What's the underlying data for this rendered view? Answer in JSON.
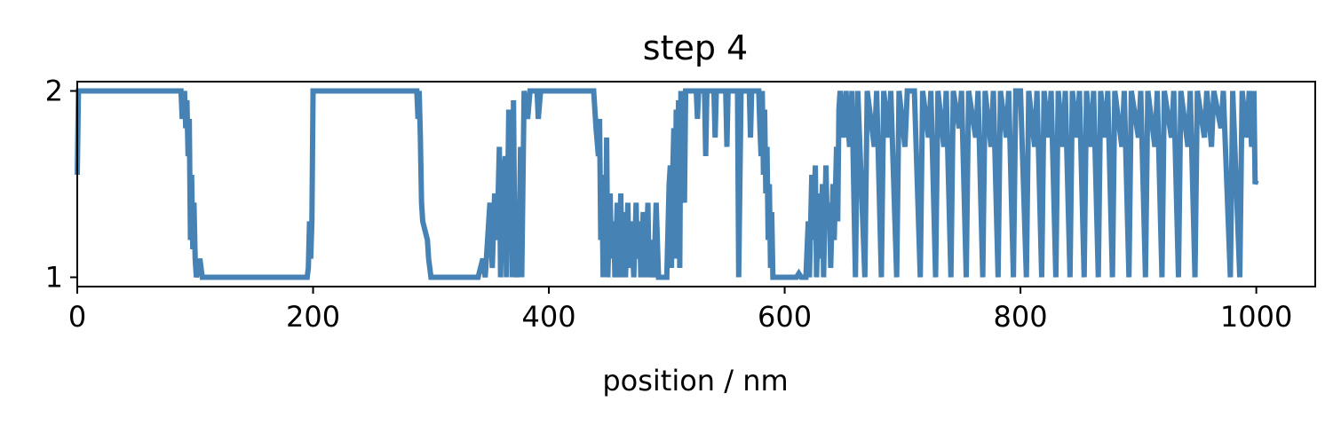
{
  "chart_data": {
    "type": "line",
    "title": "step 4",
    "xlabel": "position / nm",
    "ylabel": "",
    "xlim": [
      0,
      1050
    ],
    "ylim": [
      0.95,
      2.05
    ],
    "x_ticks": [
      0,
      200,
      400,
      600,
      800,
      1000
    ],
    "y_ticks": [
      1,
      2
    ],
    "grid": false,
    "legend": "none",
    "line_color": "#4682b4",
    "series": [
      {
        "color": "#4682b4",
        "points": [
          [
            0,
            1.55
          ],
          [
            1,
            2.0
          ],
          [
            88,
            2.0
          ],
          [
            89,
            1.85
          ],
          [
            91,
            2.0
          ],
          [
            92,
            1.8
          ],
          [
            93,
            1.95
          ],
          [
            94,
            1.65
          ],
          [
            95,
            1.85
          ],
          [
            96,
            1.2
          ],
          [
            97,
            1.55
          ],
          [
            98,
            1.15
          ],
          [
            99,
            1.4
          ],
          [
            100,
            1.1
          ],
          [
            101,
            1.0
          ],
          [
            104,
            1.1
          ],
          [
            106,
            1.0
          ],
          [
            110,
            1.0
          ],
          [
            195,
            1.0
          ],
          [
            196,
            1.05
          ],
          [
            197,
            1.3
          ],
          [
            198,
            1.1
          ],
          [
            199,
            1.3
          ],
          [
            200,
            2.0
          ],
          [
            288,
            2.0
          ],
          [
            289,
            1.85
          ],
          [
            290,
            2.0
          ],
          [
            291,
            1.75
          ],
          [
            292,
            1.4
          ],
          [
            293,
            1.3
          ],
          [
            295,
            1.25
          ],
          [
            297,
            1.2
          ],
          [
            298,
            1.1
          ],
          [
            299,
            1.05
          ],
          [
            300,
            1.0
          ],
          [
            304,
            1.0
          ],
          [
            340,
            1.0
          ],
          [
            342,
            1.05
          ],
          [
            344,
            1.1
          ],
          [
            346,
            1.0
          ],
          [
            348,
            1.2
          ],
          [
            350,
            1.4
          ],
          [
            352,
            1.05
          ],
          [
            354,
            1.45
          ],
          [
            356,
            1.2
          ],
          [
            358,
            1.7
          ],
          [
            359,
            1.0
          ],
          [
            361,
            1.5
          ],
          [
            363,
            1.65
          ],
          [
            364,
            1.0
          ],
          [
            366,
            1.9
          ],
          [
            367,
            1.3
          ],
          [
            368,
            1.8
          ],
          [
            369,
            1.0
          ],
          [
            370,
            1.95
          ],
          [
            371,
            1.2
          ],
          [
            373,
            1.0
          ],
          [
            375,
            1.3
          ],
          [
            376,
            1.7
          ],
          [
            377,
            1.0
          ],
          [
            379,
            2.0
          ],
          [
            382,
            1.85
          ],
          [
            384,
            2.0
          ],
          [
            390,
            2.0
          ],
          [
            391,
            1.85
          ],
          [
            393,
            2.0
          ],
          [
            438,
            2.0
          ],
          [
            439,
            1.9
          ],
          [
            440,
            1.8
          ],
          [
            442,
            1.65
          ],
          [
            443,
            1.85
          ],
          [
            444,
            1.2
          ],
          [
            445,
            1.55
          ],
          [
            446,
            1.0
          ],
          [
            447,
            1.5
          ],
          [
            448,
            1.1
          ],
          [
            449,
            1.75
          ],
          [
            450,
            1.0
          ],
          [
            452,
            1.45
          ],
          [
            453,
            1.1
          ],
          [
            455,
            1.3
          ],
          [
            456,
            1.0
          ],
          [
            458,
            1.4
          ],
          [
            459,
            1.0
          ],
          [
            461,
            1.45
          ],
          [
            462,
            1.0
          ],
          [
            464,
            1.35
          ],
          [
            465,
            1.0
          ],
          [
            467,
            1.4
          ],
          [
            468,
            1.05
          ],
          [
            470,
            1.3
          ],
          [
            472,
            1.0
          ],
          [
            474,
            1.4
          ],
          [
            475,
            1.1
          ],
          [
            477,
            1.3
          ],
          [
            478,
            1.0
          ],
          [
            480,
            1.35
          ],
          [
            482,
            1.0
          ],
          [
            484,
            1.4
          ],
          [
            485,
            1.0
          ],
          [
            487,
            1.2
          ],
          [
            489,
            1.0
          ],
          [
            491,
            1.4
          ],
          [
            493,
            1.0
          ],
          [
            495,
            1.0
          ],
          [
            500,
            1.0
          ],
          [
            502,
            1.5
          ],
          [
            503,
            1.6
          ],
          [
            504,
            1.05
          ],
          [
            505,
            1.55
          ],
          [
            506,
            1.8
          ],
          [
            507,
            1.1
          ],
          [
            508,
            1.9
          ],
          [
            509,
            1.6
          ],
          [
            510,
            1.95
          ],
          [
            511,
            1.05
          ],
          [
            512,
            2.0
          ],
          [
            515,
            1.4
          ],
          [
            516,
            2.0
          ],
          [
            525,
            2.0
          ],
          [
            526,
            1.85
          ],
          [
            527,
            2.0
          ],
          [
            532,
            2.0
          ],
          [
            533,
            1.65
          ],
          [
            534,
            2.0
          ],
          [
            540,
            2.0
          ],
          [
            541,
            1.75
          ],
          [
            542,
            2.0
          ],
          [
            550,
            2.0
          ],
          [
            551,
            1.7
          ],
          [
            552,
            2.0
          ],
          [
            560,
            2.0
          ],
          [
            561,
            1.0
          ],
          [
            563,
            2.0
          ],
          [
            570,
            2.0
          ],
          [
            571,
            1.75
          ],
          [
            572,
            2.0
          ],
          [
            578,
            2.0
          ],
          [
            579,
            1.8
          ],
          [
            580,
            1.65
          ],
          [
            581,
            2.0
          ],
          [
            582,
            1.55
          ],
          [
            583,
            1.9
          ],
          [
            584,
            1.45
          ],
          [
            585,
            1.7
          ],
          [
            586,
            1.2
          ],
          [
            587,
            1.5
          ],
          [
            588,
            1.05
          ],
          [
            589,
            1.35
          ],
          [
            590,
            1.0
          ],
          [
            610,
            1.0
          ],
          [
            612,
            1.02
          ],
          [
            614,
            1.0
          ],
          [
            618,
            1.0
          ],
          [
            620,
            1.3
          ],
          [
            621,
            1.0
          ],
          [
            623,
            1.55
          ],
          [
            624,
            1.2
          ],
          [
            626,
            1.6
          ],
          [
            627,
            1.0
          ],
          [
            629,
            1.45
          ],
          [
            630,
            1.1
          ],
          [
            632,
            1.5
          ],
          [
            633,
            1.0
          ],
          [
            635,
            1.6
          ],
          [
            636,
            1.3
          ],
          [
            638,
            1.4
          ],
          [
            639,
            1.05
          ],
          [
            641,
            1.5
          ],
          [
            642,
            1.2
          ],
          [
            644,
            1.7
          ],
          [
            645,
            1.3
          ],
          [
            646,
            1.9
          ],
          [
            647,
            2.0
          ],
          [
            650,
            1.75
          ],
          [
            652,
            2.0
          ],
          [
            655,
            1.7
          ],
          [
            657,
            2.0
          ],
          [
            660,
            1.0
          ],
          [
            662,
            2.0
          ],
          [
            668,
            1.0
          ],
          [
            670,
            2.0
          ],
          [
            676,
            1.7
          ],
          [
            678,
            2.0
          ],
          [
            682,
            1.0
          ],
          [
            684,
            2.0
          ],
          [
            688,
            1.75
          ],
          [
            690,
            2.0
          ],
          [
            695,
            1.0
          ],
          [
            697,
            2.0
          ],
          [
            702,
            1.7
          ],
          [
            704,
            2.0
          ],
          [
            710,
            2.0
          ],
          [
            715,
            1.0
          ],
          [
            717,
            2.0
          ],
          [
            722,
            1.75
          ],
          [
            724,
            2.0
          ],
          [
            728,
            1.0
          ],
          [
            730,
            2.0
          ],
          [
            735,
            1.7
          ],
          [
            737,
            2.0
          ],
          [
            741,
            1.0
          ],
          [
            743,
            2.0
          ],
          [
            748,
            1.8
          ],
          [
            750,
            2.0
          ],
          [
            754,
            1.0
          ],
          [
            756,
            2.0
          ],
          [
            762,
            1.75
          ],
          [
            764,
            2.0
          ],
          [
            768,
            1.0
          ],
          [
            770,
            2.0
          ],
          [
            775,
            1.7
          ],
          [
            777,
            2.0
          ],
          [
            781,
            1.0
          ],
          [
            783,
            2.0
          ],
          [
            788,
            1.75
          ],
          [
            790,
            2.0
          ],
          [
            794,
            1.0
          ],
          [
            796,
            2.0
          ],
          [
            800,
            2.0
          ],
          [
            805,
            1.0
          ],
          [
            807,
            2.0
          ],
          [
            812,
            1.7
          ],
          [
            814,
            2.0
          ],
          [
            818,
            1.0
          ],
          [
            820,
            2.0
          ],
          [
            824,
            1.75
          ],
          [
            826,
            2.0
          ],
          [
            830,
            1.0
          ],
          [
            832,
            2.0
          ],
          [
            836,
            1.7
          ],
          [
            838,
            2.0
          ],
          [
            842,
            1.0
          ],
          [
            844,
            2.0
          ],
          [
            848,
            1.75
          ],
          [
            850,
            2.0
          ],
          [
            854,
            1.0
          ],
          [
            856,
            2.0
          ],
          [
            860,
            1.7
          ],
          [
            862,
            2.0
          ],
          [
            866,
            1.0
          ],
          [
            868,
            2.0
          ],
          [
            872,
            1.75
          ],
          [
            874,
            2.0
          ],
          [
            878,
            1.0
          ],
          [
            880,
            2.0
          ],
          [
            886,
            1.7
          ],
          [
            888,
            2.0
          ],
          [
            892,
            1.0
          ],
          [
            894,
            2.0
          ],
          [
            900,
            1.75
          ],
          [
            902,
            2.0
          ],
          [
            906,
            1.0
          ],
          [
            908,
            2.0
          ],
          [
            914,
            1.7
          ],
          [
            916,
            2.0
          ],
          [
            920,
            1.0
          ],
          [
            922,
            2.0
          ],
          [
            928,
            1.75
          ],
          [
            930,
            2.0
          ],
          [
            934,
            1.0
          ],
          [
            936,
            2.0
          ],
          [
            942,
            1.7
          ],
          [
            944,
            2.0
          ],
          [
            948,
            1.0
          ],
          [
            950,
            2.0
          ],
          [
            956,
            1.75
          ],
          [
            958,
            2.0
          ],
          [
            962,
            1.7
          ],
          [
            964,
            2.0
          ],
          [
            970,
            1.8
          ],
          [
            972,
            2.0
          ],
          [
            978,
            1.0
          ],
          [
            980,
            2.0
          ],
          [
            986,
            1.0
          ],
          [
            988,
            2.0
          ],
          [
            992,
            1.75
          ],
          [
            994,
            2.0
          ],
          [
            996,
            1.7
          ],
          [
            998,
            2.0
          ],
          [
            999,
            1.5
          ],
          [
            1000,
            1.52
          ]
        ]
      }
    ]
  }
}
